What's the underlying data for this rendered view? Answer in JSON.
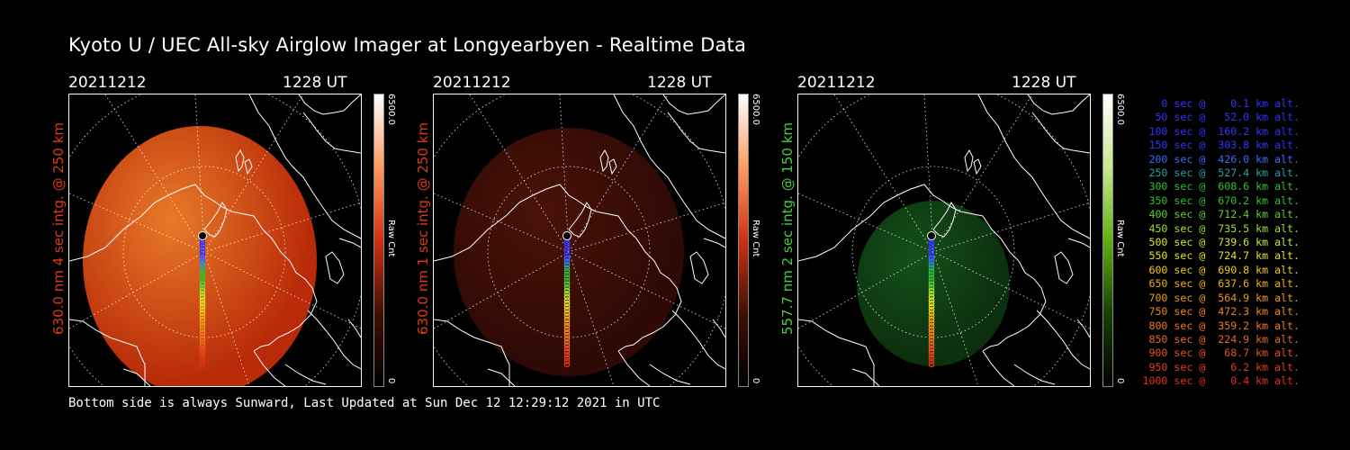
{
  "title": "Kyoto U / UEC All-sky Airglow Imager at Longyearbyen - Realtime Data",
  "footer": "Bottom side is always Sunward, Last Updated at Sun Dec 12 12:29:12 2021 in UTC",
  "panels": [
    {
      "date": "20211212",
      "time": "1228 UT",
      "ylabel": "630.0 nm 4 sec intg. @ 250 km",
      "cbar_max": "6500.0",
      "cbar_min": "0",
      "cbar_unit": "Raw Cnt",
      "color": "#d23a10",
      "label_color": "#e03a14",
      "brightness": 0.85
    },
    {
      "date": "20211212",
      "time": "1228 UT",
      "ylabel": "630.0 nm 1 sec intg. @ 250 km",
      "cbar_max": "6500.0",
      "cbar_min": "0",
      "cbar_unit": "Raw Cnt",
      "color": "#3a0b06",
      "label_color": "#e03a14",
      "brightness": 0.25
    },
    {
      "date": "20211212",
      "time": "1228 UT",
      "ylabel": "557.7 nm 2 sec intg. @ 150 km",
      "cbar_max": "6500.0",
      "cbar_min": "0",
      "cbar_unit": "Raw Cnt",
      "color": "#0f3a10",
      "label_color": "#44d040",
      "brightness": 0.3
    }
  ],
  "legend": [
    {
      "text": "   0 sec @    0.1 km alt.",
      "color": "#3434ff"
    },
    {
      "text": "  50 sec @   52.0 km alt.",
      "color": "#3434ff"
    },
    {
      "text": " 100 sec @  160.2 km alt.",
      "color": "#3434ff"
    },
    {
      "text": " 150 sec @  303.8 km alt.",
      "color": "#3434ff"
    },
    {
      "text": " 200 sec @  426.0 km alt.",
      "color": "#3a6aff"
    },
    {
      "text": " 250 sec @  527.4 km alt.",
      "color": "#2aa0a0"
    },
    {
      "text": " 300 sec @  608.6 km alt.",
      "color": "#30c030"
    },
    {
      "text": " 350 sec @  670.2 km alt.",
      "color": "#30c030"
    },
    {
      "text": " 400 sec @  712.4 km alt.",
      "color": "#60d030"
    },
    {
      "text": " 450 sec @  735.5 km alt.",
      "color": "#a0e030"
    },
    {
      "text": " 500 sec @  739.6 km alt.",
      "color": "#d0e830"
    },
    {
      "text": " 550 sec @  724.7 km alt.",
      "color": "#e8e020"
    },
    {
      "text": " 600 sec @  690.8 km alt.",
      "color": "#f0c818"
    },
    {
      "text": " 650 sec @  637.6 km alt.",
      "color": "#f0b010"
    },
    {
      "text": " 700 sec @  564.9 km alt.",
      "color": "#f09818"
    },
    {
      "text": " 750 sec @  472.3 km alt.",
      "color": "#f08818"
    },
    {
      "text": " 800 sec @  359.2 km alt.",
      "color": "#f07820"
    },
    {
      "text": " 850 sec @  224.9 km alt.",
      "color": "#e86820"
    },
    {
      "text": " 900 sec @   68.7 km alt.",
      "color": "#e85020"
    },
    {
      "text": " 950 sec @    6.2 km alt.",
      "color": "#e04018"
    },
    {
      "text": "1000 sec @    0.4 km alt.",
      "color": "#e03018"
    }
  ]
}
